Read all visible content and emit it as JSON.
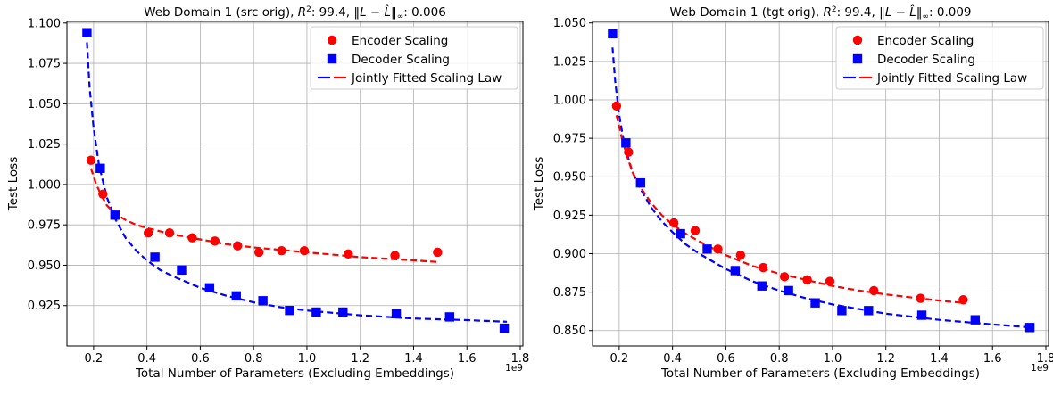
{
  "colors": {
    "encoder": "#ff0000",
    "decoder": "#0000ff",
    "fit_line": [
      "#0000ff",
      "#ff0000"
    ]
  },
  "chart_data": [
    {
      "type": "scatter",
      "title": "Web Domain 1 (src orig), R²: 99.4, ‖L − L̂‖∞: 0.006",
      "title_parts": {
        "lead": "Web Domain 1 (src orig), ",
        "r2_value": ": 99.4, ",
        "norm_value": ": 0.006"
      },
      "xlabel": "Total Number of Parameters (Excluding Embeddings)",
      "ylabel": "Test Loss",
      "x_offset_label": "1e9",
      "xlim": [
        0.1,
        1.81
      ],
      "ylim": [
        0.9,
        1.101
      ],
      "xticks": [
        0.2,
        0.4,
        0.6,
        0.8,
        1.0,
        1.2,
        1.4,
        1.6,
        1.8
      ],
      "xtick_labels": [
        "0.2",
        "0.4",
        "0.6",
        "0.8",
        "1.0",
        "1.2",
        "1.4",
        "1.6",
        "1.8"
      ],
      "yticks": [
        0.925,
        0.95,
        0.975,
        1.0,
        1.025,
        1.05,
        1.075,
        1.1
      ],
      "ytick_labels": [
        "0.925",
        "0.950",
        "0.975",
        "1.000",
        "1.025",
        "1.050",
        "1.075",
        "1.100"
      ],
      "grid": true,
      "legend_position": "top-right",
      "legend": [
        "Encoder Scaling",
        "Decoder Scaling",
        "Jointly Fitted Scaling Law"
      ],
      "series": [
        {
          "name": "Encoder Scaling",
          "marker": "circle",
          "x": [
            0.19,
            0.235,
            0.405,
            0.485,
            0.57,
            0.655,
            0.74,
            0.82,
            0.905,
            0.99,
            1.155,
            1.33,
            1.49
          ],
          "y": [
            1.015,
            0.994,
            0.97,
            0.97,
            0.967,
            0.965,
            0.962,
            0.958,
            0.959,
            0.959,
            0.957,
            0.956,
            0.958
          ]
        },
        {
          "name": "Decoder Scaling",
          "marker": "square",
          "x": [
            0.175,
            0.225,
            0.28,
            0.43,
            0.53,
            0.635,
            0.735,
            0.835,
            0.935,
            1.035,
            1.135,
            1.335,
            1.535,
            1.74
          ],
          "y": [
            1.094,
            1.01,
            0.981,
            0.955,
            0.947,
            0.936,
            0.931,
            0.928,
            0.922,
            0.921,
            0.921,
            0.92,
            0.918,
            0.911
          ]
        },
        {
          "name": "Jointly Fitted Scaling Law",
          "style": "dashed",
          "encoder_curve": {
            "x": [
              0.19,
              0.21,
              0.23,
              0.25,
              0.28,
              0.32,
              0.36,
              0.4,
              0.45,
              0.5,
              0.6,
              0.7,
              0.8,
              0.9,
              1.0,
              1.1,
              1.2,
              1.3,
              1.4,
              1.49
            ],
            "y": [
              1.01,
              1.0,
              0.993,
              0.987,
              0.982,
              0.978,
              0.975,
              0.973,
              0.971,
              0.969,
              0.966,
              0.963,
              0.961,
              0.9595,
              0.958,
              0.9565,
              0.955,
              0.954,
              0.953,
              0.952
            ]
          },
          "decoder_curve": {
            "x": [
              0.175,
              0.185,
              0.2,
              0.22,
              0.25,
              0.28,
              0.32,
              0.36,
              0.4,
              0.45,
              0.5,
              0.6,
              0.7,
              0.8,
              0.9,
              1.0,
              1.2,
              1.4,
              1.6,
              1.75
            ],
            "y": [
              1.088,
              1.06,
              1.035,
              1.012,
              0.992,
              0.979,
              0.967,
              0.959,
              0.953,
              0.947,
              0.943,
              0.936,
              0.931,
              0.927,
              0.924,
              0.922,
              0.919,
              0.917,
              0.916,
              0.915
            ]
          }
        }
      ]
    },
    {
      "type": "scatter",
      "title": "Web Domain 1 (tgt orig), R²: 99.4, ‖L − L̂‖∞: 0.009",
      "title_parts": {
        "lead": "Web Domain 1 (tgt orig), ",
        "r2_value": ": 99.4, ",
        "norm_value": ": 0.009"
      },
      "xlabel": "Total Number of Parameters (Excluding Embeddings)",
      "ylabel": "Test Loss",
      "x_offset_label": "1e9",
      "xlim": [
        0.1,
        1.81
      ],
      "ylim": [
        0.84,
        1.051
      ],
      "xticks": [
        0.2,
        0.4,
        0.6,
        0.8,
        1.0,
        1.2,
        1.4,
        1.6,
        1.8
      ],
      "xtick_labels": [
        "0.2",
        "0.4",
        "0.6",
        "0.8",
        "1.0",
        "1.2",
        "1.4",
        "1.6",
        "1.8"
      ],
      "yticks": [
        0.85,
        0.875,
        0.9,
        0.925,
        0.95,
        0.975,
        1.0,
        1.025,
        1.05
      ],
      "ytick_labels": [
        "0.850",
        "0.875",
        "0.900",
        "0.925",
        "0.950",
        "0.975",
        "1.000",
        "1.025",
        "1.050"
      ],
      "grid": true,
      "legend_position": "top-right",
      "legend": [
        "Encoder Scaling",
        "Decoder Scaling",
        "Jointly Fitted Scaling Law"
      ],
      "series": [
        {
          "name": "Encoder Scaling",
          "marker": "circle",
          "x": [
            0.19,
            0.235,
            0.405,
            0.485,
            0.57,
            0.655,
            0.74,
            0.82,
            0.905,
            0.99,
            1.155,
            1.33,
            1.49
          ],
          "y": [
            0.996,
            0.966,
            0.92,
            0.915,
            0.903,
            0.899,
            0.891,
            0.885,
            0.883,
            0.882,
            0.876,
            0.871,
            0.87
          ]
        },
        {
          "name": "Decoder Scaling",
          "marker": "square",
          "x": [
            0.175,
            0.225,
            0.28,
            0.43,
            0.53,
            0.635,
            0.735,
            0.835,
            0.935,
            1.035,
            1.135,
            1.335,
            1.535,
            1.74
          ],
          "y": [
            1.043,
            0.972,
            0.946,
            0.913,
            0.903,
            0.889,
            0.879,
            0.876,
            0.868,
            0.863,
            0.863,
            0.86,
            0.857,
            0.852
          ]
        },
        {
          "name": "Jointly Fitted Scaling Law",
          "style": "dashed",
          "encoder_curve": {
            "x": [
              0.19,
              0.21,
              0.23,
              0.25,
              0.28,
              0.32,
              0.36,
              0.4,
              0.45,
              0.5,
              0.6,
              0.7,
              0.8,
              0.9,
              1.0,
              1.1,
              1.2,
              1.3,
              1.4,
              1.49
            ],
            "y": [
              0.99,
              0.975,
              0.963,
              0.953,
              0.943,
              0.933,
              0.925,
              0.919,
              0.913,
              0.908,
              0.899,
              0.892,
              0.887,
              0.883,
              0.879,
              0.876,
              0.8735,
              0.8715,
              0.8695,
              0.868
            ]
          },
          "decoder_curve": {
            "x": [
              0.175,
              0.185,
              0.2,
              0.22,
              0.25,
              0.28,
              0.32,
              0.36,
              0.4,
              0.45,
              0.5,
              0.6,
              0.7,
              0.8,
              0.9,
              1.0,
              1.2,
              1.4,
              1.6,
              1.75
            ],
            "y": [
              1.034,
              1.012,
              0.99,
              0.97,
              0.953,
              0.942,
              0.93,
              0.921,
              0.914,
              0.906,
              0.9,
              0.89,
              0.882,
              0.876,
              0.871,
              0.867,
              0.861,
              0.857,
              0.854,
              0.852
            ]
          }
        }
      ]
    }
  ]
}
